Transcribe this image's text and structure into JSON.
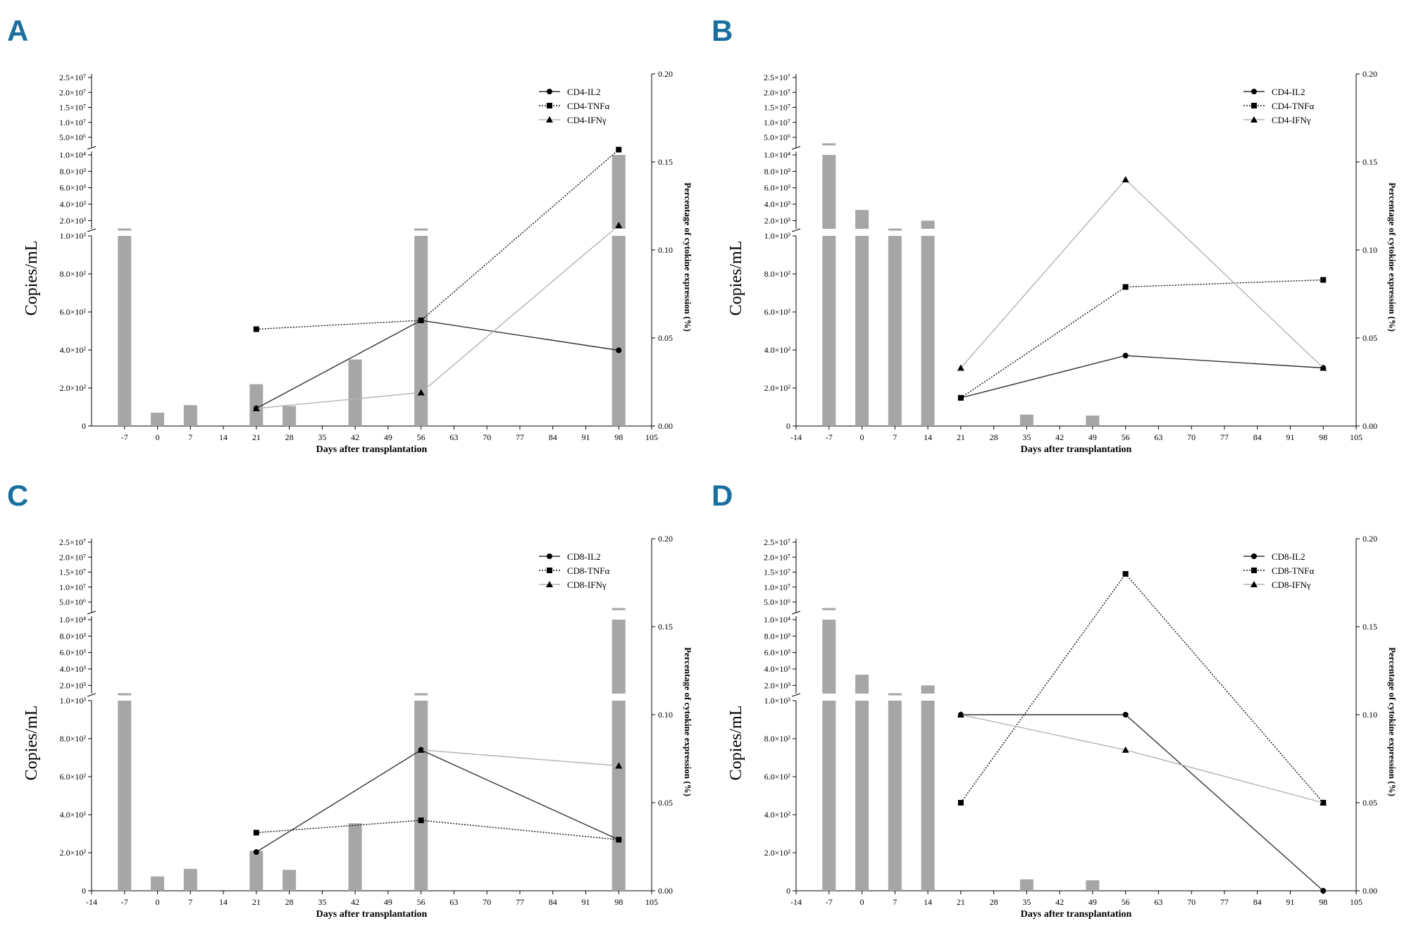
{
  "figure": {
    "xlabel": "Days after transplantation",
    "ylabel_left": "Copies/mL",
    "ylabel_right": "Percentage of cytokine expression  (%)",
    "left_ticks_upper": [
      "2.5×10⁷",
      "2.0×10⁷",
      "1.5×10⁷",
      "1.0×10⁷",
      "5.0×10⁶"
    ],
    "left_ticks_middle": [
      "1.0×10⁴",
      "8.0×10³",
      "6.0×10³",
      "4.0×10³",
      "2.0×10³"
    ],
    "left_ticks_lower": [
      "1.0×10³",
      "8.0×10²",
      "6.0×10²",
      "4.0×10²",
      "2.0×10²",
      "0"
    ],
    "right_ticks": [
      "0.00",
      "0.05",
      "0.10",
      "0.15",
      "0.20"
    ],
    "colors": {
      "bar": "#a6a6a6",
      "il2": "#333333",
      "tnf": "#111111",
      "ifn": "#b3b3b3",
      "panel_letter": "#1a6f9f"
    }
  },
  "chart_data": [
    {
      "panel": "A",
      "type": "bar+line",
      "x_ticks": [
        "-7",
        "0",
        "7",
        "14",
        "21",
        "28",
        "35",
        "42",
        "49",
        "56",
        "63",
        "70",
        "77",
        "84",
        "91",
        "98",
        "105"
      ],
      "xlim": [
        -14,
        105
      ],
      "bars": {
        "x": [
          -7,
          0,
          7,
          21,
          28,
          42,
          56,
          98
        ],
        "values": [
          1000,
          70,
          110,
          220,
          105,
          350,
          1000,
          10000
        ],
        "capped": [
          true,
          false,
          false,
          false,
          false,
          false,
          true,
          false
        ]
      },
      "series": [
        {
          "name": "CD4-IL2",
          "marker": "circle",
          "style": "solid",
          "x": [
            21,
            56,
            98
          ],
          "y": [
            0.01,
            0.06,
            0.043
          ]
        },
        {
          "name": "CD4-TNFα",
          "marker": "square",
          "style": "dotted",
          "x": [
            21,
            56,
            98
          ],
          "y": [
            0.055,
            0.06,
            0.157
          ]
        },
        {
          "name": "CD4-IFNγ",
          "marker": "triangle",
          "style": "light",
          "x": [
            21,
            56,
            98
          ],
          "y": [
            0.01,
            0.019,
            0.114
          ]
        }
      ],
      "y2lim": [
        0,
        0.2
      ]
    },
    {
      "panel": "B",
      "type": "bar+line",
      "x_ticks": [
        "-14",
        "-7",
        "0",
        "7",
        "14",
        "21",
        "28",
        "35",
        "42",
        "49",
        "56",
        "63",
        "70",
        "77",
        "84",
        "91",
        "98",
        "105"
      ],
      "xlim": [
        -14,
        105
      ],
      "bars": {
        "x": [
          -7,
          0,
          7,
          14,
          35,
          49
        ],
        "values": [
          10000,
          3300,
          1000,
          2000,
          60,
          55
        ],
        "capped": [
          true,
          false,
          true,
          false,
          false,
          false
        ]
      },
      "series": [
        {
          "name": "CD4-IL2",
          "marker": "circle",
          "style": "solid",
          "x": [
            21,
            56,
            98
          ],
          "y": [
            0.016,
            0.04,
            0.033
          ]
        },
        {
          "name": "CD4-TNFα",
          "marker": "square",
          "style": "dotted",
          "x": [
            21,
            56,
            98
          ],
          "y": [
            0.016,
            0.079,
            0.083
          ]
        },
        {
          "name": "CD4-IFNγ",
          "marker": "triangle",
          "style": "light",
          "x": [
            21,
            56,
            98
          ],
          "y": [
            0.033,
            0.14,
            0.033
          ]
        }
      ],
      "y2lim": [
        0,
        0.2
      ]
    },
    {
      "panel": "C",
      "type": "bar+line",
      "x_ticks": [
        "-14",
        "-7",
        "0",
        "7",
        "14",
        "21",
        "28",
        "35",
        "42",
        "49",
        "56",
        "63",
        "70",
        "77",
        "84",
        "91",
        "98",
        "105"
      ],
      "xlim": [
        -14,
        105
      ],
      "bars": {
        "x": [
          -7,
          0,
          7,
          21,
          28,
          42,
          56,
          98
        ],
        "values": [
          1000,
          75,
          115,
          210,
          110,
          355,
          1000,
          10000
        ],
        "capped": [
          true,
          false,
          false,
          false,
          false,
          false,
          true,
          true
        ]
      },
      "series": [
        {
          "name": "CD8-IL2",
          "marker": "circle",
          "style": "solid",
          "x": [
            21,
            56,
            98
          ],
          "y": [
            0.022,
            0.08,
            0.029
          ]
        },
        {
          "name": "CD8-TNFα",
          "marker": "square",
          "style": "dotted",
          "x": [
            21,
            56,
            98
          ],
          "y": [
            0.033,
            0.04,
            0.029
          ]
        },
        {
          "name": "CD8-IFNγ",
          "marker": "triangle",
          "style": "light",
          "x": [
            56,
            98
          ],
          "y": [
            0.08,
            0.071
          ]
        }
      ],
      "y2lim": [
        0,
        0.2
      ]
    },
    {
      "panel": "D",
      "type": "bar+line",
      "x_ticks": [
        "-14",
        "-7",
        "0",
        "7",
        "14",
        "21",
        "28",
        "35",
        "42",
        "49",
        "56",
        "63",
        "70",
        "77",
        "84",
        "91",
        "98",
        "105"
      ],
      "xlim": [
        -14,
        105
      ],
      "bars": {
        "x": [
          -7,
          0,
          7,
          14,
          35,
          49
        ],
        "values": [
          10000,
          3300,
          1000,
          2000,
          60,
          55
        ],
        "capped": [
          true,
          false,
          true,
          false,
          false,
          false
        ]
      },
      "series": [
        {
          "name": "CD8-IL2",
          "marker": "circle",
          "style": "solid",
          "x": [
            21,
            56,
            98
          ],
          "y": [
            0.1,
            0.1,
            0.0
          ]
        },
        {
          "name": "CD8-TNFα",
          "marker": "square",
          "style": "dotted",
          "x": [
            21,
            56,
            98
          ],
          "y": [
            0.05,
            0.18,
            0.05
          ]
        },
        {
          "name": "CD8-IFNγ",
          "marker": "triangle",
          "style": "light",
          "x": [
            21,
            56,
            98
          ],
          "y": [
            0.1,
            0.08,
            0.05
          ]
        }
      ],
      "y2lim": [
        0,
        0.2
      ]
    }
  ]
}
